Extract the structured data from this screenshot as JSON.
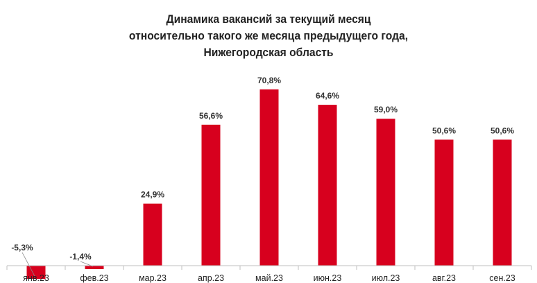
{
  "chart_data": {
    "type": "bar",
    "title_lines": [
      "Динамика вакансий за текущий месяц",
      "относительно такого же месяца предыдущего года,",
      "Нижегородская область"
    ],
    "categories": [
      "янв.23",
      "фев.23",
      "мар.23",
      "апр.23",
      "май.23",
      "июн.23",
      "июл.23",
      "авг.23",
      "сен.23"
    ],
    "values": [
      -5.3,
      -1.4,
      24.9,
      56.6,
      70.8,
      64.6,
      59.0,
      50.6,
      50.6
    ],
    "data_labels": [
      "-5,3%",
      "-1,4%",
      "24,9%",
      "56,6%",
      "70,8%",
      "64,6%",
      "59,0%",
      "50,6%",
      "50,6%"
    ],
    "xlabel": "",
    "ylabel": "",
    "ylim": [
      -7,
      75
    ],
    "grid": false,
    "bar_color": "#D7001E",
    "axis_color": "#BFBFBF"
  }
}
